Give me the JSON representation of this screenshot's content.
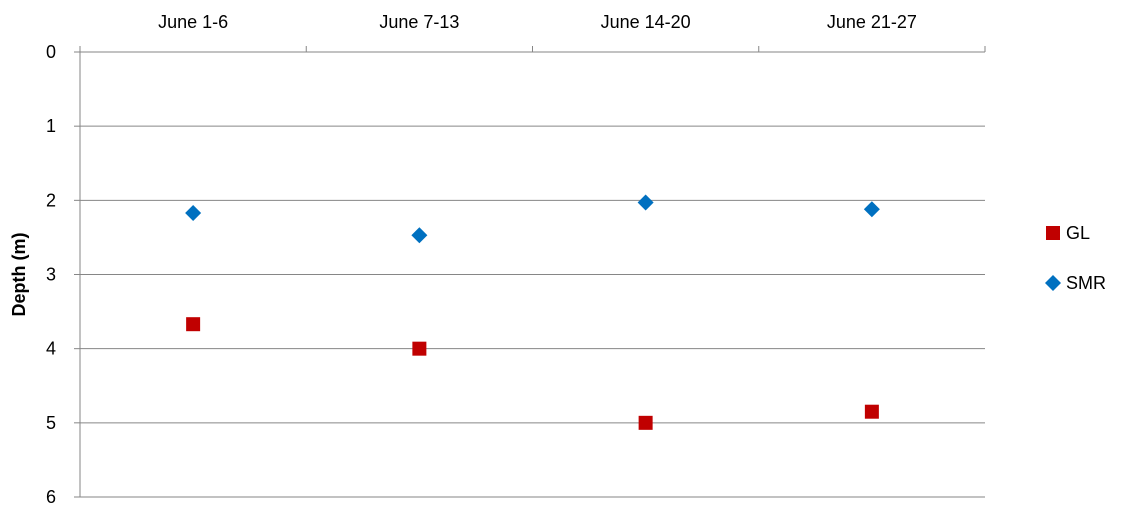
{
  "chart_data": {
    "type": "scatter",
    "title": "",
    "xlabel": "",
    "ylabel": "Depth (m)",
    "categories": [
      "June 1-6",
      "June 7-13",
      "June 14-20",
      "June 21-27"
    ],
    "y_ticks": [
      "0",
      "1",
      "2",
      "3",
      "4",
      "5",
      "6"
    ],
    "ylim": [
      0,
      6
    ],
    "y_inverted": true,
    "x_axis_position": "top",
    "grid": true,
    "legend_position": "right",
    "series": [
      {
        "name": "GL",
        "marker": "square",
        "color": "#C00000",
        "values": [
          3.67,
          4.0,
          5.0,
          4.85
        ]
      },
      {
        "name": "SMR",
        "marker": "diamond",
        "color": "#0070C0",
        "values": [
          2.17,
          2.47,
          2.03,
          2.12
        ]
      }
    ]
  }
}
